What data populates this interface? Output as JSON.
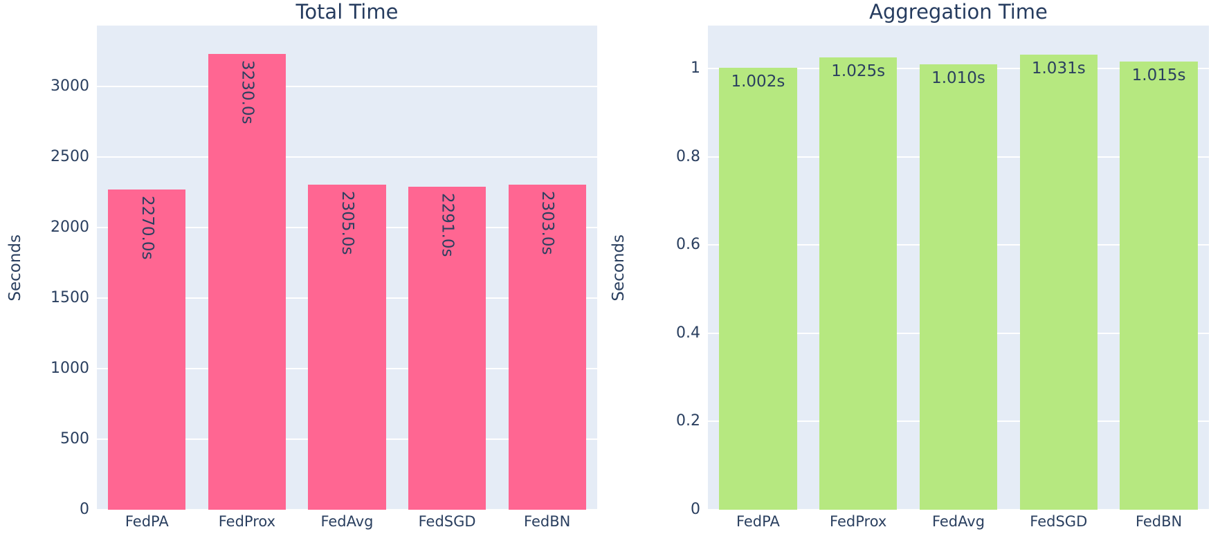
{
  "colors": {
    "page_bg": "#ffffff",
    "plot_bg": "#e5ecf6",
    "gridline": "#ffffff",
    "title_text": "#263c5f",
    "axis_text": "#2a3f5f",
    "bar_label_text": "#2a3f5f",
    "left_bar": "#FF6692",
    "right_bar": "#B6E880"
  },
  "chart_data": [
    {
      "type": "bar",
      "title": "Total Time",
      "xlabel": "",
      "ylabel": "Seconds",
      "categories": [
        "FedPA",
        "FedProx",
        "FedAvg",
        "FedSGD",
        "FedBN"
      ],
      "values": [
        2270.0,
        3230.0,
        2305.0,
        2291.0,
        2303.0
      ],
      "bar_labels": [
        "2270.0s",
        "3230.0s",
        "2305.0s",
        "2291.0s",
        "2303.0s"
      ],
      "bar_label_orientation": "vertical",
      "bar_color": "#FF6692",
      "yticks": [
        0,
        500,
        1000,
        1500,
        2000,
        2500,
        3000
      ],
      "ytick_labels": [
        "0",
        "500",
        "1000",
        "1500",
        "2000",
        "2500",
        "3000"
      ],
      "ylim": [
        0,
        3431
      ],
      "grid": true,
      "legend": "none",
      "plot_bg": "#e5ecf6"
    },
    {
      "type": "bar",
      "title": "Aggregation Time",
      "xlabel": "",
      "ylabel": "Seconds",
      "categories": [
        "FedPA",
        "FedProx",
        "FedAvg",
        "FedSGD",
        "FedBN"
      ],
      "values": [
        1.002,
        1.025,
        1.01,
        1.031,
        1.015
      ],
      "bar_labels": [
        "1.002s",
        "1.025s",
        "1.010s",
        "1.031s",
        "1.015s"
      ],
      "bar_label_orientation": "horizontal",
      "bar_color": "#B6E880",
      "yticks": [
        0,
        0.2,
        0.4,
        0.6,
        0.8,
        1
      ],
      "ytick_labels": [
        "0",
        "0.2",
        "0.4",
        "0.6",
        "0.8",
        "1"
      ],
      "ylim": [
        0,
        1.097
      ],
      "grid": true,
      "legend": "none",
      "plot_bg": "#e5ecf6"
    }
  ]
}
